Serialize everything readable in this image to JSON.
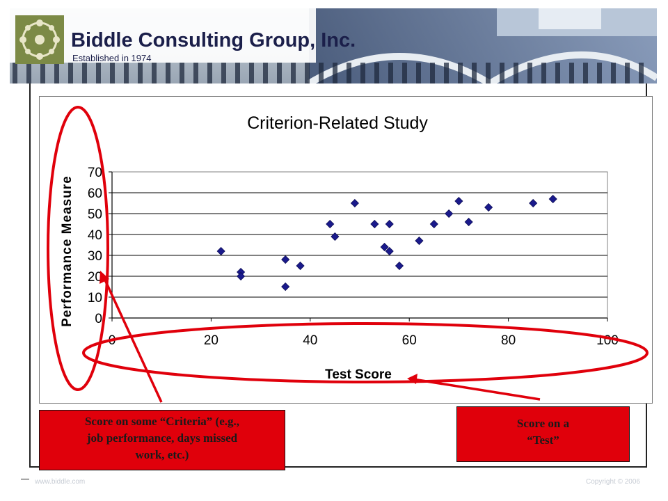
{
  "header": {
    "company_name": "Biddle Consulting Group, Inc.",
    "tagline": "Established in 1974"
  },
  "chart_data": {
    "type": "scatter",
    "title": "Criterion-Related Study",
    "xlabel": "Test Score",
    "ylabel": "Performance Measure",
    "xlim": [
      0,
      100
    ],
    "ylim": [
      0,
      70
    ],
    "x_ticks": [
      0,
      20,
      40,
      60,
      80,
      100
    ],
    "y_ticks": [
      0,
      10,
      20,
      30,
      40,
      50,
      60,
      70
    ],
    "grid": "horizontal",
    "marker": "diamond",
    "marker_color": "#1a1a8c",
    "points": [
      {
        "x": 22,
        "y": 32
      },
      {
        "x": 26,
        "y": 22
      },
      {
        "x": 26,
        "y": 20
      },
      {
        "x": 35,
        "y": 28
      },
      {
        "x": 35,
        "y": 15
      },
      {
        "x": 38,
        "y": 25
      },
      {
        "x": 44,
        "y": 45
      },
      {
        "x": 45,
        "y": 39
      },
      {
        "x": 49,
        "y": 55
      },
      {
        "x": 53,
        "y": 45
      },
      {
        "x": 55,
        "y": 34
      },
      {
        "x": 56,
        "y": 32
      },
      {
        "x": 56,
        "y": 45
      },
      {
        "x": 58,
        "y": 25
      },
      {
        "x": 62,
        "y": 37
      },
      {
        "x": 65,
        "y": 45
      },
      {
        "x": 68,
        "y": 50
      },
      {
        "x": 70,
        "y": 56
      },
      {
        "x": 72,
        "y": 46
      },
      {
        "x": 76,
        "y": 53
      },
      {
        "x": 85,
        "y": 55
      },
      {
        "x": 89,
        "y": 57
      }
    ]
  },
  "callouts": {
    "criteria_line1": "Score on some “Criteria” (e.g.,",
    "criteria_line2": "job performance, days missed",
    "criteria_line3": "work, etc.)",
    "test_line1": "Score on a",
    "test_line2": "“Test”"
  },
  "footer": {
    "url": "www.biddle.com",
    "copyright": "Copyright © 2006"
  },
  "colors": {
    "highlight": "#e0000b",
    "brand": "#1b1f4a"
  }
}
